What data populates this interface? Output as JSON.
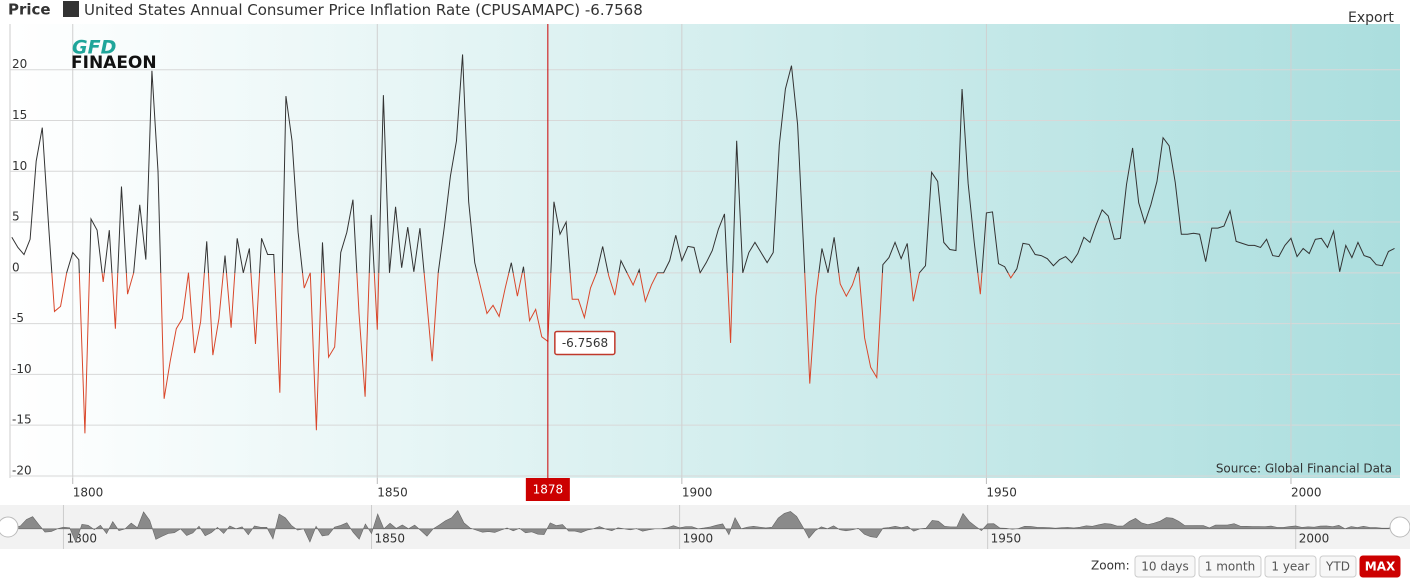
{
  "header": {
    "label": "Price",
    "export": "Export",
    "logo_top": "GFD",
    "logo_bottom": "FINAEON"
  },
  "chart_data": {
    "type": "line",
    "series": [
      {
        "name": "United States Annual Consumer Price Inflation Rate (CPUSAMAPC)",
        "color": "#333333",
        "negative_color": "#d9472b",
        "values": [
          3.5,
          2.5,
          1.8,
          3.3,
          11,
          14.3,
          5,
          -3.8,
          -3.3,
          0,
          2,
          1.3,
          -15.8,
          5.3,
          4.2,
          -0.9,
          4.2,
          -5.5,
          8.5,
          -2.1,
          0,
          6.7,
          1.3,
          19.9,
          10,
          -12.4,
          -8.7,
          -5.5,
          -4.5,
          0,
          -7.9,
          -4.8,
          3.1,
          -8.1,
          -4.5,
          1.7,
          -5.4,
          3.4,
          0,
          2.4,
          -7,
          3.4,
          1.8,
          1.8,
          -11.8,
          17.4,
          13,
          4,
          -1.5,
          0,
          -15.5,
          3,
          -8.3,
          -7.3,
          2,
          4,
          7.2,
          -4,
          -12.2,
          5.7,
          -5.6,
          17.5,
          0,
          6.5,
          0.5,
          4.5,
          0.1,
          4.4,
          -2,
          -8.7,
          0,
          4.5,
          9.5,
          13,
          21.5,
          7,
          1,
          -1.5,
          -4,
          -3.2,
          -4.3,
          -1.5,
          1,
          -2.3,
          0.6,
          -4.7,
          -3.6,
          -6.3,
          -6.7568,
          7,
          3.8,
          5,
          -2.6,
          -2.6,
          -4.4,
          -1.5,
          0,
          2.6,
          -0.3,
          -2.2,
          1.2,
          0,
          -1.2,
          0.3,
          -2.8,
          -1.2,
          0,
          0,
          1.2,
          3.7,
          1.2,
          2.6,
          2.5,
          0,
          1,
          2.2,
          4.3,
          5.8,
          -6.9,
          13,
          0,
          2,
          3,
          2,
          1,
          2,
          12.6,
          18.1,
          20.4,
          14.6,
          2.3,
          -10.9,
          -2.3,
          2.4,
          0,
          3.5,
          -1.1,
          -2.3,
          -1.2,
          0.6,
          -6.4,
          -9.3,
          -10.3,
          0.8,
          1.5,
          3,
          1.4,
          2.9,
          -2.8,
          0,
          0.7,
          9.9,
          9,
          3,
          2.3,
          2.2,
          18.1,
          8.8,
          3,
          -2.1,
          5.9,
          6,
          0.9,
          0.6,
          -0.5,
          0.4,
          2.9,
          2.8,
          1.8,
          1.7,
          1.4,
          0.7,
          1.3,
          1.6,
          1,
          1.9,
          3.5,
          3,
          4.7,
          6.2,
          5.6,
          3.3,
          3.4,
          8.7,
          12.3,
          6.9,
          4.9,
          6.7,
          9,
          13.3,
          12.5,
          8.9,
          3.8,
          3.8,
          3.9,
          3.8,
          1.1,
          4.4,
          4.4,
          4.6,
          6.1,
          3.1,
          2.9,
          2.7,
          2.7,
          2.5,
          3.3,
          1.7,
          1.6,
          2.7,
          3.4,
          1.6,
          2.4,
          1.9,
          3.3,
          3.4,
          2.5,
          4.1,
          0.1,
          2.7,
          1.5,
          3,
          1.7,
          1.5,
          0.8,
          0.7,
          2.1,
          2.4
        ]
      }
    ],
    "x": [
      1790,
      1791,
      1792,
      1793,
      1794,
      1795,
      1796,
      1797,
      1798,
      1799,
      1800,
      1801,
      1802,
      1803,
      1804,
      1805,
      1806,
      1807,
      1808,
      1809,
      1810,
      1811,
      1812,
      1813,
      1814,
      1815,
      1816,
      1817,
      1818,
      1819,
      1820,
      1821,
      1822,
      1823,
      1824,
      1825,
      1826,
      1827,
      1828,
      1829,
      1830,
      1831,
      1832,
      1833,
      1834,
      1835,
      1836,
      1837,
      1838,
      1839,
      1840,
      1841,
      1842,
      1843,
      1844,
      1845,
      1846,
      1847,
      1848,
      1849,
      1850,
      1851,
      1852,
      1853,
      1854,
      1855,
      1856,
      1857,
      1858,
      1859,
      1860,
      1861,
      1862,
      1863,
      1864,
      1865,
      1866,
      1867,
      1868,
      1869,
      1870,
      1871,
      1872,
      1873,
      1874,
      1875,
      1876,
      1877,
      1878,
      1879,
      1880,
      1881,
      1882,
      1883,
      1884,
      1885,
      1886,
      1887,
      1888,
      1889,
      1890,
      1891,
      1892,
      1893,
      1894,
      1895,
      1896,
      1897,
      1898,
      1899,
      1900,
      1901,
      1902,
      1903,
      1904,
      1905,
      1906,
      1907,
      1908,
      1909,
      1910,
      1911,
      1912,
      1913,
      1914,
      1915,
      1916,
      1917,
      1918,
      1919,
      1920,
      1921,
      1922,
      1923,
      1924,
      1925,
      1926,
      1927,
      1928,
      1929,
      1930,
      1931,
      1932,
      1933,
      1934,
      1935,
      1936,
      1937,
      1938,
      1939,
      1940,
      1941,
      1942,
      1943,
      1944,
      1945,
      1946,
      1947,
      1948,
      1949,
      1950,
      1951,
      1952,
      1953,
      1954,
      1955,
      1956,
      1957,
      1958,
      1959,
      1960,
      1961,
      1962,
      1963,
      1964,
      1965,
      1966,
      1967,
      1968,
      1969,
      1970,
      1971,
      1972,
      1973,
      1974,
      1975,
      1976,
      1977,
      1978,
      1979,
      1980,
      1981,
      1982,
      1983,
      1984,
      1985,
      1986,
      1987,
      1988,
      1989,
      1990,
      1991,
      1992,
      1993,
      1994,
      1995,
      1996,
      1997,
      1998,
      1999,
      2000,
      2001,
      2002,
      2003,
      2004,
      2005,
      2006,
      2007,
      2008,
      2009,
      2010,
      2011,
      2012,
      2013,
      2014,
      2015,
      2016,
      2017
    ],
    "xlim": [
      1789.7,
      2017.9
    ],
    "ylim": [
      -20.2,
      24.5
    ],
    "xticks": [
      1800,
      1850,
      1900,
      1950,
      2000
    ],
    "yticks": [
      -20,
      -15,
      -10,
      -5,
      0,
      5,
      10,
      15,
      20
    ],
    "grid": true,
    "source": "Source: Global Financial Data"
  },
  "ui": {
    "zoom_label": "Zoom:",
    "zoom_buttons": [
      "10 days",
      "1 month",
      "1 year",
      "YTD",
      "MAX"
    ]
  }
}
